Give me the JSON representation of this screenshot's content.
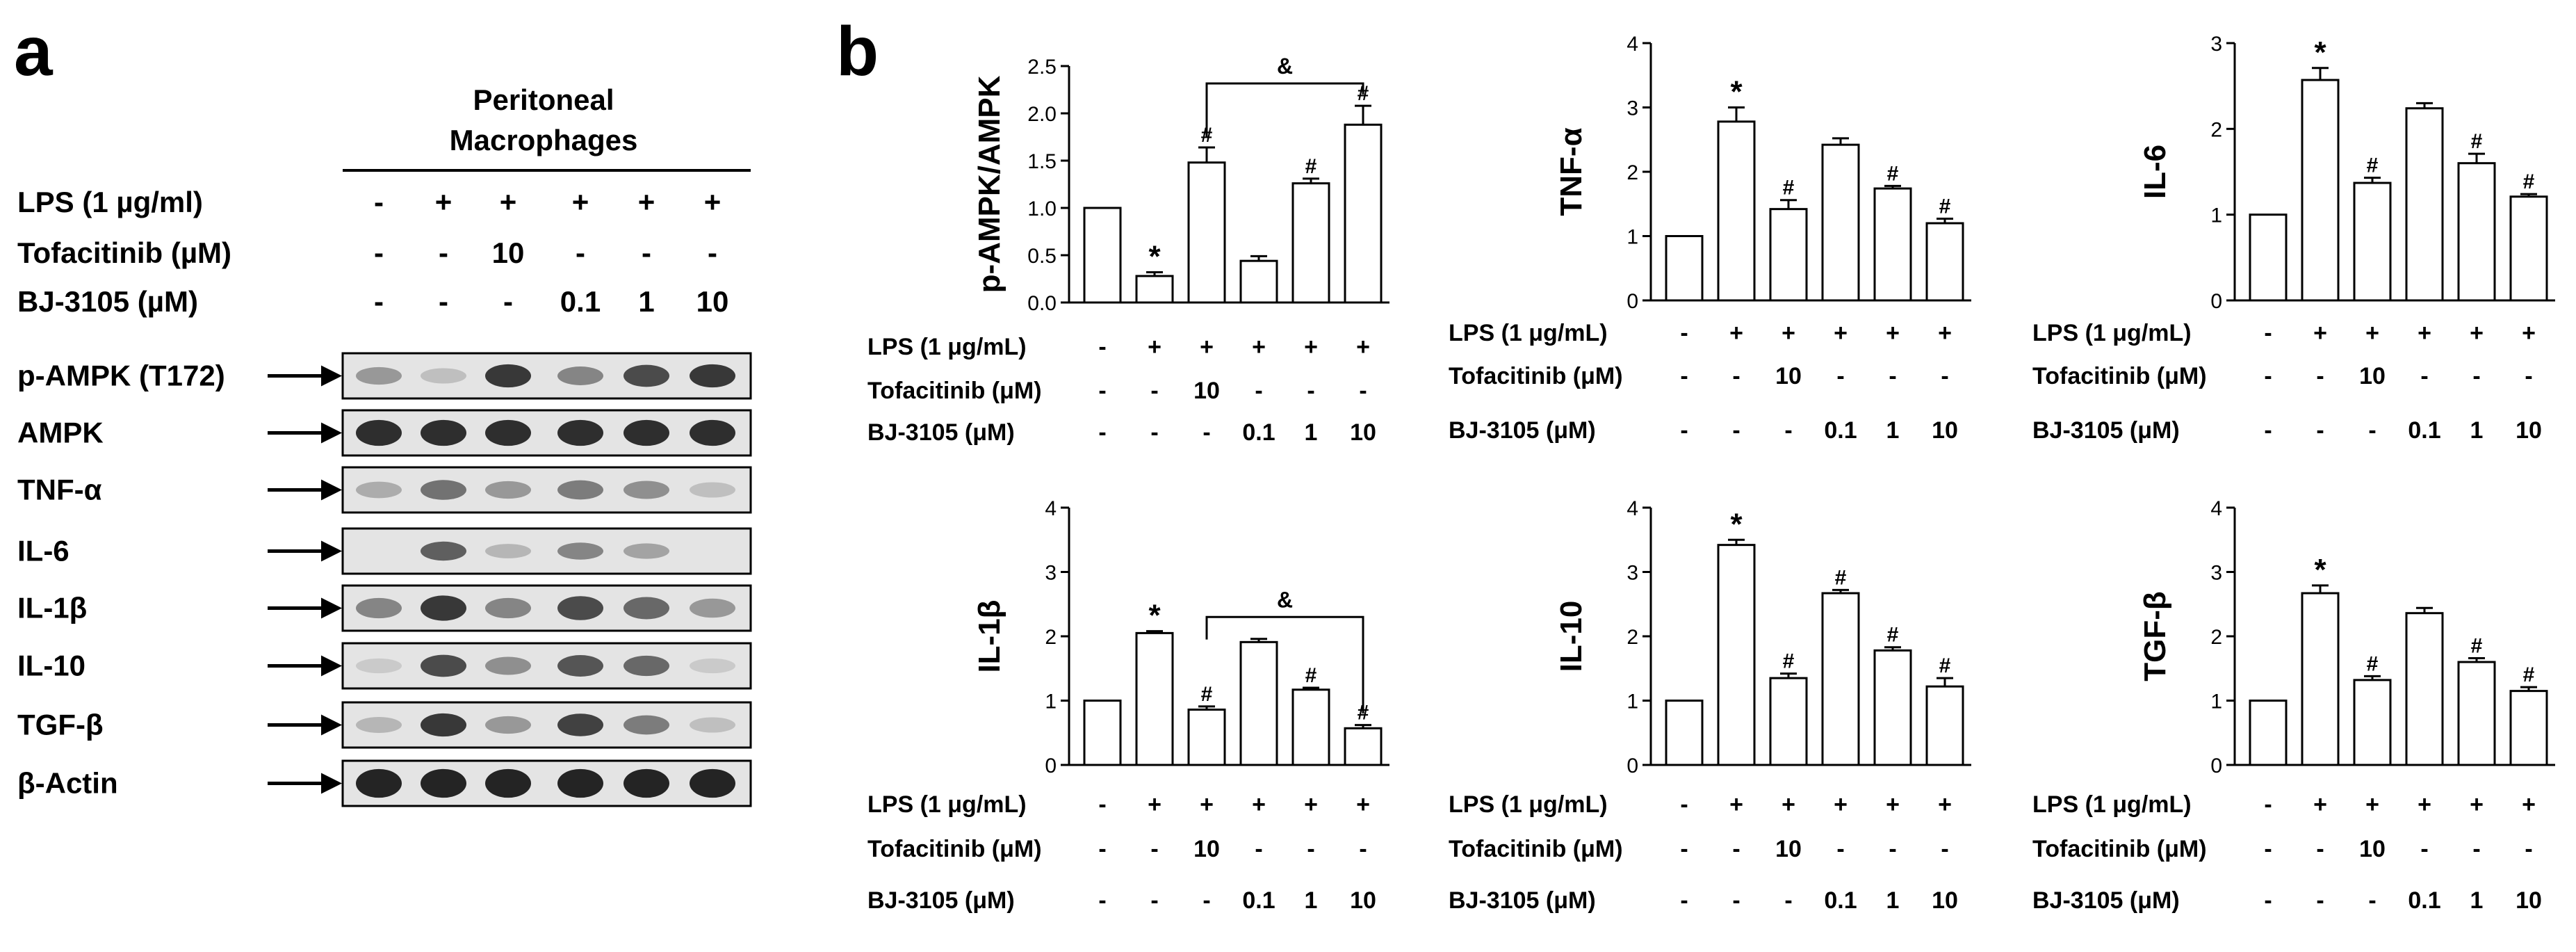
{
  "panel_a": {
    "label": "a",
    "header": [
      "Peritoneal",
      "Macrophages"
    ],
    "conditions": [
      {
        "label": "LPS (1 µg/ml)",
        "values": [
          "-",
          "+",
          "+",
          "+",
          "+",
          "+"
        ]
      },
      {
        "label": "Tofacitinib (µM)",
        "values": [
          "-",
          "-",
          "10",
          "-",
          "-",
          "-"
        ]
      },
      {
        "label": "BJ-3105 (µM)",
        "values": [
          "-",
          "-",
          "-",
          "0.1",
          "1",
          "10"
        ]
      }
    ],
    "blots": [
      {
        "label": "p-AMPK (T172)",
        "intensities": [
          0.35,
          0.15,
          0.85,
          0.45,
          0.75,
          0.85
        ],
        "thickness": 0.55
      },
      {
        "label": "AMPK",
        "intensities": [
          0.9,
          0.9,
          0.9,
          0.9,
          0.9,
          0.9
        ],
        "thickness": 0.6
      },
      {
        "label": "TNF-α",
        "intensities": [
          0.25,
          0.55,
          0.35,
          0.5,
          0.4,
          0.15
        ],
        "thickness": 0.55
      },
      {
        "label": "IL-6",
        "intensities": [
          0.0,
          0.65,
          0.2,
          0.45,
          0.3,
          0.0
        ],
        "thickness": 0.5
      },
      {
        "label": "IL-1β",
        "intensities": [
          0.45,
          0.85,
          0.45,
          0.75,
          0.6,
          0.35
        ],
        "thickness": 0.6
      },
      {
        "label": "IL-10",
        "intensities": [
          0.1,
          0.75,
          0.4,
          0.7,
          0.6,
          0.1
        ],
        "thickness": 0.55
      },
      {
        "label": "TGF-β",
        "intensities": [
          0.2,
          0.85,
          0.35,
          0.8,
          0.5,
          0.15
        ],
        "thickness": 0.55
      },
      {
        "label": "β-Actin",
        "intensities": [
          0.95,
          0.95,
          0.95,
          0.95,
          0.95,
          0.95
        ],
        "thickness": 0.65
      }
    ]
  },
  "panel_b_label": "b",
  "conditions_b": {
    "rows": [
      {
        "label": "LPS (1 μg/mL)",
        "values": [
          "-",
          "+",
          "+",
          "+",
          "+",
          "+"
        ]
      },
      {
        "label": "Tofacitinib (μM)",
        "values": [
          "-",
          "-",
          "10",
          "-",
          "-",
          "-"
        ]
      },
      {
        "label": "BJ-3105 (μM)",
        "values": [
          "-",
          "-",
          "-",
          "0.1",
          "1",
          "10"
        ]
      }
    ]
  },
  "chart_data": [
    {
      "type": "bar",
      "ylabel": "p-AMPK/AMPK",
      "ylim": [
        0,
        2.5
      ],
      "ticks": [
        "0.0",
        "0.5",
        "1.0",
        "1.5",
        "2.0",
        "2.5"
      ],
      "values": [
        1.0,
        0.28,
        1.48,
        0.44,
        1.26,
        1.88
      ],
      "errors": [
        0.0,
        0.04,
        0.16,
        0.05,
        0.05,
        0.2
      ],
      "marks": [
        "",
        "*",
        "#",
        "",
        "#",
        "#"
      ],
      "bracket": {
        "from": 2,
        "to": 5,
        "label": "&"
      }
    },
    {
      "type": "bar",
      "ylabel": "TNF-α",
      "ylim": [
        0,
        4
      ],
      "ticks": [
        "0",
        "1",
        "2",
        "3",
        "4"
      ],
      "values": [
        1.0,
        2.78,
        1.42,
        2.42,
        1.74,
        1.2
      ],
      "errors": [
        0.0,
        0.22,
        0.14,
        0.1,
        0.04,
        0.07
      ],
      "marks": [
        "",
        "*",
        "#",
        "",
        "#",
        "#"
      ],
      "bracket": null
    },
    {
      "type": "bar",
      "ylabel": "IL-6",
      "ylim": [
        0,
        3
      ],
      "ticks": [
        "0",
        "1",
        "2",
        "3"
      ],
      "values": [
        1.0,
        2.57,
        1.37,
        2.24,
        1.6,
        1.21
      ],
      "errors": [
        0.0,
        0.14,
        0.06,
        0.06,
        0.11,
        0.03
      ],
      "marks": [
        "",
        "*",
        "#",
        "",
        "#",
        "#"
      ],
      "bracket": null
    },
    {
      "type": "bar",
      "ylabel": "IL-1β",
      "ylim": [
        0,
        4
      ],
      "ticks": [
        "0",
        "1",
        "2",
        "3",
        "4"
      ],
      "values": [
        1.0,
        2.05,
        0.86,
        1.91,
        1.17,
        0.57
      ],
      "errors": [
        0.0,
        0.03,
        0.05,
        0.05,
        0.03,
        0.05
      ],
      "marks": [
        "",
        "*",
        "#",
        "",
        "#",
        "#"
      ],
      "bracket": {
        "from": 2,
        "to": 5,
        "label": "&"
      }
    },
    {
      "type": "bar",
      "ylabel": "IL-10",
      "ylim": [
        0,
        4
      ],
      "ticks": [
        "0",
        "1",
        "2",
        "3",
        "4"
      ],
      "values": [
        1.0,
        3.42,
        1.35,
        2.67,
        1.78,
        1.22
      ],
      "errors": [
        0.0,
        0.08,
        0.07,
        0.05,
        0.05,
        0.13
      ],
      "marks": [
        "",
        "*",
        "#",
        "#",
        "#",
        "#"
      ],
      "bracket": null
    },
    {
      "type": "bar",
      "ylabel": "TGF-β",
      "ylim": [
        0,
        4
      ],
      "ticks": [
        "0",
        "1",
        "2",
        "3",
        "4"
      ],
      "values": [
        1.0,
        2.67,
        1.32,
        2.36,
        1.6,
        1.15
      ],
      "errors": [
        0.0,
        0.12,
        0.06,
        0.08,
        0.06,
        0.06
      ],
      "marks": [
        "",
        "*",
        "#",
        "",
        "#",
        "#"
      ],
      "bracket": null
    }
  ]
}
